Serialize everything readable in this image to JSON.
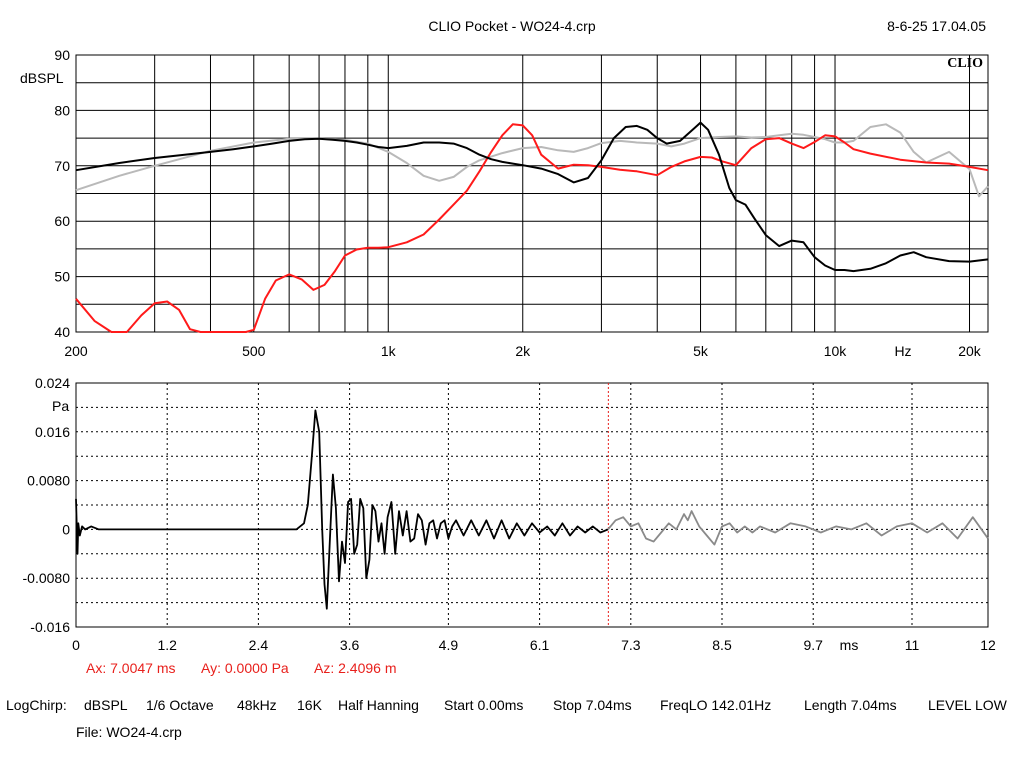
{
  "header": {
    "title": "CLIO Pocket - WO24-4.crp",
    "datetime": "8-6-25 17.04.05",
    "logo": "CLIO"
  },
  "colors": {
    "black_trace": "#000000",
    "red_trace": "#ff1a1a",
    "gray_trace": "#b9b9b9",
    "marker": "#e8201c",
    "impulse_tail": "#8a8a8a"
  },
  "chart_data": [
    {
      "type": "line",
      "xscale": "log",
      "xlim": [
        200,
        22000
      ],
      "ylim": [
        40,
        90
      ],
      "ylabel": "dBSPL",
      "xunit": "Hz",
      "yticks": [
        40,
        50,
        60,
        70,
        80,
        90
      ],
      "xtick_labels": [
        {
          "v": 200,
          "t": "200"
        },
        {
          "v": 500,
          "t": "500"
        },
        {
          "v": 1000,
          "t": "1k"
        },
        {
          "v": 2000,
          "t": "2k"
        },
        {
          "v": 5000,
          "t": "5k"
        },
        {
          "v": 10000,
          "t": "10k"
        },
        {
          "v": 20000,
          "t": "20k"
        }
      ],
      "grid": true,
      "series": [
        {
          "color": "#000000",
          "x": [
            200,
            250,
            300,
            350,
            400,
            450,
            500,
            550,
            600,
            650,
            700,
            750,
            800,
            850,
            900,
            950,
            1000,
            1100,
            1200,
            1300,
            1400,
            1500,
            1600,
            1700,
            1800,
            1900,
            2000,
            2200,
            2400,
            2600,
            2800,
            3000,
            3200,
            3400,
            3600,
            3800,
            4000,
            4200,
            4500,
            4800,
            5000,
            5200,
            5500,
            5800,
            6000,
            6300,
            6600,
            7000,
            7500,
            8000,
            8500,
            9000,
            9500,
            10000,
            10500,
            11000,
            12000,
            13000,
            14000,
            15000,
            16000,
            18000,
            20000,
            22000
          ],
          "values": [
            69.2,
            70.5,
            71.4,
            72,
            72.5,
            73,
            73.5,
            74,
            74.5,
            74.8,
            74.9,
            74.7,
            74.5,
            74.2,
            73.8,
            73.4,
            73.2,
            73.6,
            74.2,
            74.2,
            74,
            73.2,
            72,
            71.2,
            70.7,
            70.4,
            70.1,
            69.5,
            68.5,
            67,
            67.8,
            71,
            75,
            77,
            77.2,
            76.5,
            75,
            74,
            74.5,
            76.5,
            77.8,
            76.5,
            72,
            66,
            63.8,
            63,
            60.5,
            57.5,
            55.5,
            56.5,
            56.2,
            53.5,
            52,
            51.2,
            51.2,
            51,
            51.4,
            52.4,
            53.8,
            54.4,
            53.5,
            52.8,
            52.7,
            53.1
          ]
        },
        {
          "color": "#ff1a1a",
          "x": [
            200,
            220,
            240,
            260,
            280,
            300,
            320,
            340,
            360,
            380,
            400,
            420,
            440,
            460,
            480,
            500,
            530,
            560,
            600,
            640,
            680,
            720,
            760,
            800,
            850,
            900,
            950,
            1000,
            1100,
            1200,
            1300,
            1400,
            1500,
            1600,
            1700,
            1800,
            1900,
            2000,
            2100,
            2200,
            2400,
            2600,
            2800,
            3000,
            3300,
            3600,
            4000,
            4300,
            4600,
            5000,
            5300,
            5600,
            6000,
            6500,
            7000,
            7500,
            8000,
            8500,
            9000,
            9500,
            10000,
            10500,
            11000,
            12000,
            14000,
            16000,
            18000,
            20000,
            22000
          ],
          "values": [
            46,
            42,
            40,
            40,
            43,
            45.2,
            45.5,
            44,
            40.5,
            40,
            40,
            40,
            40,
            40,
            40,
            40.4,
            46,
            49.3,
            50.4,
            49.5,
            47.6,
            48.5,
            51,
            53.8,
            54.9,
            55.2,
            55.2,
            55.3,
            56.2,
            57.6,
            60.3,
            63,
            65.5,
            69,
            72.5,
            75.5,
            77.5,
            77.3,
            75.5,
            72,
            69.5,
            70.2,
            70.1,
            69.8,
            69.3,
            69,
            68.3,
            69.8,
            70.8,
            71.6,
            71.5,
            70.8,
            70.1,
            73.2,
            74.8,
            75,
            74,
            73.2,
            74.3,
            75.5,
            75.3,
            74.2,
            73,
            72.2,
            71.1,
            70.6,
            70.4,
            69.8,
            69.2
          ]
        },
        {
          "color": "#b9b9b9",
          "x": [
            200,
            250,
            300,
            400,
            500,
            600,
            700,
            800,
            900,
            1000,
            1100,
            1200,
            1300,
            1400,
            1500,
            1600,
            1800,
            2000,
            2200,
            2400,
            2600,
            2800,
            3000,
            3300,
            3600,
            4000,
            4300,
            4600,
            5000,
            5500,
            6000,
            6500,
            7000,
            7500,
            8000,
            8500,
            9000,
            9500,
            10000,
            10500,
            11000,
            12000,
            13000,
            14000,
            15000,
            16000,
            18000,
            20000,
            21000,
            22000
          ],
          "values": [
            65.6,
            68.2,
            70,
            72.7,
            74.2,
            74.9,
            74.9,
            74.7,
            74,
            72.5,
            70.5,
            68.2,
            67.3,
            68,
            69.8,
            71,
            72.3,
            73.2,
            73.4,
            72.8,
            72.5,
            73.2,
            74.1,
            74.5,
            74.2,
            74,
            73.5,
            74,
            75,
            75.2,
            75.3,
            75.1,
            75.2,
            75.5,
            75.8,
            75.6,
            75.2,
            74.8,
            74.2,
            74.2,
            74.5,
            77,
            77.5,
            76,
            72.5,
            70.6,
            72.5,
            69.4,
            64.5,
            66.3
          ]
        }
      ]
    },
    {
      "type": "line",
      "xlim": [
        0,
        12
      ],
      "ylim": [
        -0.016,
        0.024
      ],
      "ylabel": "Pa",
      "xunit": "ms",
      "yticks": [
        {
          "v": 0.024,
          "t": "0.024"
        },
        {
          "v": 0.016,
          "t": "0.016"
        },
        {
          "v": 0.008,
          "t": "0.0080"
        },
        {
          "v": 0,
          "t": "0"
        },
        {
          "v": -0.008,
          "t": "-0.0080"
        },
        {
          "v": -0.016,
          "t": "-0.016"
        }
      ],
      "xtick_labels": [
        {
          "v": 0,
          "t": "0"
        },
        {
          "v": 1.2,
          "t": "1.2"
        },
        {
          "v": 2.4,
          "t": "2.4"
        },
        {
          "v": 3.6,
          "t": "3.6"
        },
        {
          "v": 4.9,
          "t": "4.9"
        },
        {
          "v": 6.1,
          "t": "6.1"
        },
        {
          "v": 7.3,
          "t": "7.3"
        },
        {
          "v": 8.5,
          "t": "8.5"
        },
        {
          "v": 9.7,
          "t": "9.7"
        },
        {
          "v": 11,
          "t": "11"
        },
        {
          "v": 12,
          "t": "12"
        }
      ],
      "grid": true,
      "marker_x": 7.0047,
      "series": [
        {
          "color": "#000000",
          "x": [
            0,
            0.02,
            0.03,
            0.05,
            0.08,
            0.12,
            0.2,
            0.3,
            0.5,
            1,
            1.5,
            2,
            2.5,
            2.9,
            3.0,
            3.05,
            3.1,
            3.15,
            3.2,
            3.24,
            3.27,
            3.3,
            3.34,
            3.38,
            3.42,
            3.46,
            3.5,
            3.54,
            3.58,
            3.62,
            3.66,
            3.7,
            3.74,
            3.78,
            3.82,
            3.86,
            3.9,
            3.94,
            3.98,
            4.02,
            4.06,
            4.1,
            4.15,
            4.2,
            4.25,
            4.3,
            4.35,
            4.4,
            4.45,
            4.5,
            4.55,
            4.6,
            4.65,
            4.7,
            4.75,
            4.8,
            4.85,
            4.9,
            4.95,
            5.0,
            5.1,
            5.2,
            5.3,
            5.4,
            5.5,
            5.6,
            5.7,
            5.8,
            5.9,
            6.0,
            6.1,
            6.2,
            6.3,
            6.4,
            6.5,
            6.6,
            6.7,
            6.8,
            6.9,
            7.0
          ],
          "values": [
            0.005,
            -0.004,
            0.001,
            -0.001,
            0.0005,
            0,
            0.0005,
            0,
            0,
            0,
            0,
            0,
            0,
            0,
            0.001,
            0.004,
            0.0115,
            0.0195,
            0.016,
            0.0,
            -0.009,
            -0.013,
            -0.002,
            0.009,
            0.0035,
            -0.0085,
            -0.002,
            -0.0055,
            0.0045,
            0.005,
            -0.004,
            -0.0025,
            0.005,
            0.0035,
            -0.008,
            -0.005,
            0.004,
            0.003,
            -0.002,
            0.001,
            -0.004,
            0.002,
            0.0045,
            -0.004,
            0.003,
            -0.001,
            0.003,
            -0.002,
            -0.0015,
            0.0025,
            0.0015,
            -0.0025,
            0.001,
            0.0015,
            -0.0015,
            0.001,
            0.0015,
            -0.0015,
            0.0005,
            0.0015,
            -0.001,
            0.0015,
            -0.001,
            0.0015,
            -0.0015,
            0.0015,
            -0.0015,
            0.001,
            -0.001,
            0.001,
            -0.0005,
            0.0005,
            -0.001,
            0.001,
            -0.001,
            0.0005,
            -0.0005,
            0.0005,
            -0.0005,
            0
          ]
        },
        {
          "color": "#8a8a8a",
          "x": [
            7.0,
            7.1,
            7.2,
            7.3,
            7.4,
            7.5,
            7.6,
            7.7,
            7.8,
            7.9,
            8.0,
            8.05,
            8.1,
            8.2,
            8.3,
            8.4,
            8.5,
            8.6,
            8.7,
            8.8,
            8.9,
            9.0,
            9.2,
            9.4,
            9.6,
            9.8,
            10.0,
            10.2,
            10.4,
            10.6,
            10.8,
            11.0,
            11.2,
            11.4,
            11.6,
            11.8,
            12.0
          ],
          "values": [
            0,
            0.0015,
            0.002,
            0.0005,
            0.001,
            -0.0015,
            -0.002,
            -0.0005,
            0.001,
            0,
            0.0025,
            0.0015,
            0.003,
            0.0005,
            -0.001,
            -0.0025,
            0.0005,
            0.001,
            -0.0005,
            0.0005,
            -0.0005,
            0.0005,
            -0.0005,
            0.001,
            0.0005,
            -0.0005,
            0.0005,
            0,
            0.001,
            -0.001,
            0.0005,
            0.001,
            -0.0005,
            0.001,
            -0.0015,
            0.002,
            -0.0015
          ]
        }
      ]
    }
  ],
  "cursor": {
    "ax": "Ax: 7.0047 ms",
    "ay": "Ay: 0.0000 Pa",
    "az": "Az: 2.4096 m"
  },
  "footer": {
    "settings": [
      "LogChirp:",
      "dBSPL",
      "1/6 Octave",
      "48kHz",
      "16K",
      "Half Hanning",
      "Start 0.00ms",
      "Stop 7.04ms",
      "FreqLO 142.01Hz",
      "Length 7.04ms",
      "LEVEL LOW"
    ],
    "file": "File: WO24-4.crp"
  }
}
